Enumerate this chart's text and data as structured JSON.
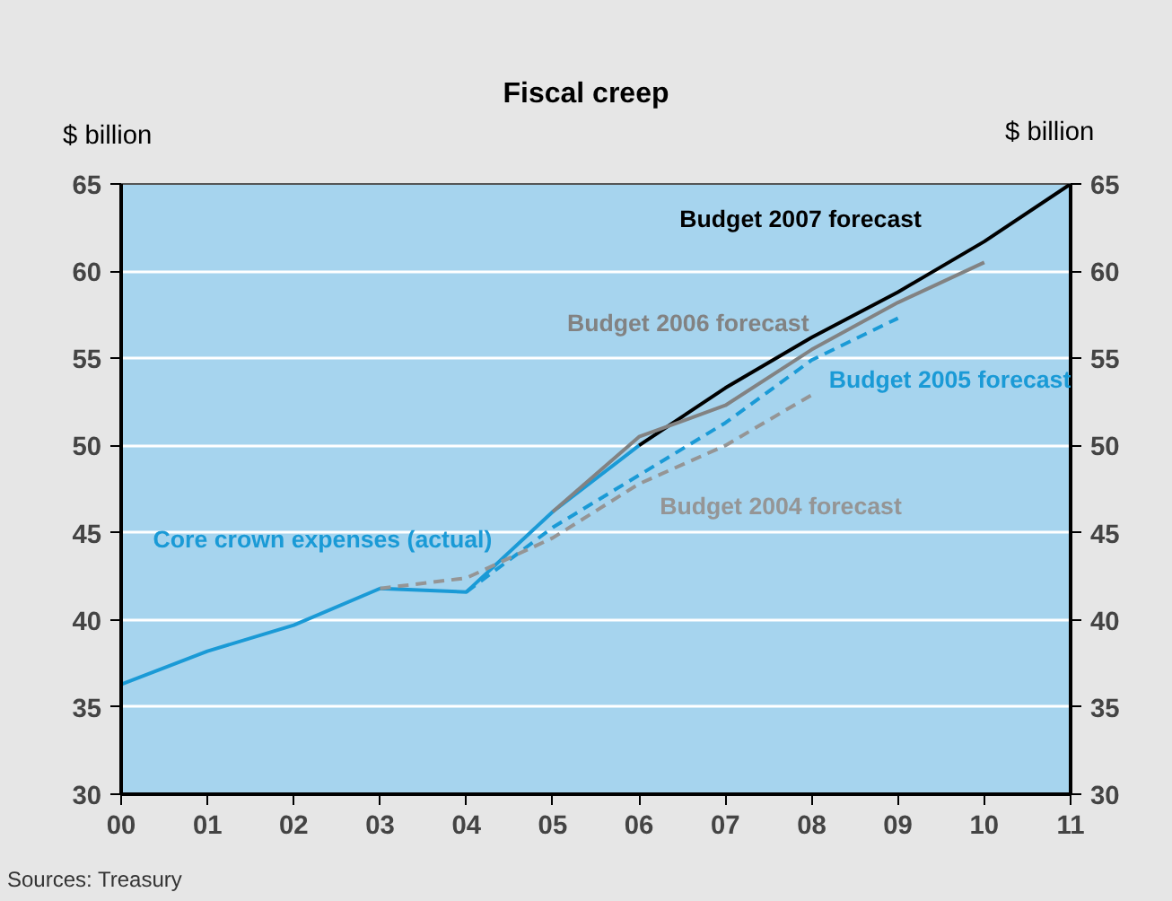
{
  "chart_data": {
    "type": "line",
    "title": "Fiscal creep",
    "ylabel": "$ billion",
    "y2label": "$ billion",
    "categories": [
      "00",
      "01",
      "02",
      "03",
      "04",
      "05",
      "06",
      "07",
      "08",
      "09",
      "10",
      "11"
    ],
    "series": [
      {
        "name": "Core crown expenses (actual)",
        "color": "#1a9ad6",
        "values": [
          36.3,
          38.2,
          39.7,
          41.8,
          41.6,
          46.2,
          50.0,
          null,
          null,
          null,
          null,
          null
        ]
      },
      {
        "name": "Budget 2007 forecast",
        "color": "#000000",
        "values": [
          null,
          null,
          null,
          null,
          null,
          null,
          50.0,
          53.3,
          56.2,
          58.8,
          61.7,
          65.0
        ]
      },
      {
        "name": "Budget 2006 forecast",
        "color": "#828282",
        "values": [
          null,
          null,
          null,
          null,
          null,
          46.2,
          50.5,
          52.3,
          55.5,
          58.2,
          60.5,
          null
        ]
      },
      {
        "name": "Budget 2005 forecast",
        "color": "#1a9ad6",
        "line_style": "dashed",
        "values": [
          null,
          null,
          null,
          null,
          41.6,
          45.3,
          48.3,
          51.3,
          54.9,
          57.3,
          null,
          null
        ]
      },
      {
        "name": "Budget 2004 forecast",
        "color": "#959595",
        "line_style": "dashed",
        "values": [
          null,
          null,
          null,
          41.8,
          42.4,
          44.7,
          47.8,
          50.0,
          52.9,
          null,
          null,
          null
        ]
      }
    ],
    "ylim": [
      30,
      65
    ],
    "yticks": [
      30,
      35,
      40,
      45,
      50,
      55,
      60,
      65
    ],
    "y2lim": [
      30,
      65
    ],
    "y2ticks": [
      30,
      35,
      40,
      45,
      50,
      55,
      60,
      65
    ],
    "grid": "y",
    "annotations": [
      "Sources: Treasury"
    ]
  }
}
